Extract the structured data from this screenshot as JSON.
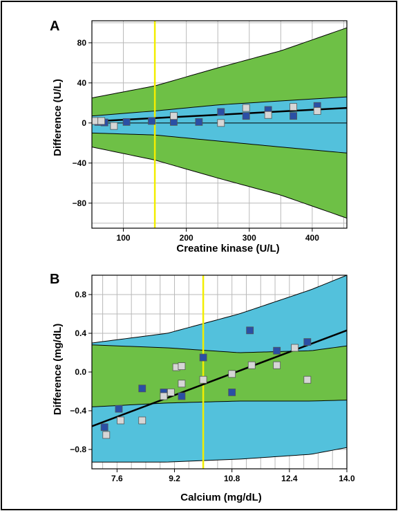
{
  "chart_data": [
    {
      "panel": "A",
      "type": "scatter",
      "xlabel": "Creatine kinase (U/L)",
      "ylabel": "Difference (U/L)",
      "xlim": [
        50,
        455
      ],
      "ylim": [
        -105,
        102
      ],
      "xticks": [
        100,
        200,
        300,
        400
      ],
      "yticks": [
        80,
        40,
        0,
        -40,
        -80
      ],
      "ytick_labels": [
        "80",
        "40",
        "0",
        "−40",
        "−80"
      ],
      "grid": true,
      "reference_x": 150,
      "fit_line": {
        "x": [
          50,
          455
        ],
        "y": [
          1.5,
          15
        ]
      },
      "zero_line_y": 0,
      "outer_band": {
        "color": "#6ec046",
        "x": [
          50,
          150,
          250,
          350,
          455
        ],
        "upper": [
          25,
          37,
          55,
          72,
          95
        ],
        "lower": [
          -26,
          -27,
          -28,
          -29,
          -30
        ],
        "upper_inner": [
          -30,
          -29,
          -28,
          -27,
          -27
        ],
        "lower_outer": [
          -24,
          -37,
          -55,
          -72,
          -95
        ],
        "note": "green regions between inner band edges and outer curves"
      },
      "inner_band": {
        "color": "#53c1dc",
        "x": [
          50,
          150,
          250,
          350,
          455
        ],
        "upper": [
          7,
          12,
          18,
          22,
          26
        ],
        "lower": [
          -10,
          -12,
          -18,
          -24,
          -30
        ]
      },
      "series": [
        {
          "color": "#2a4fa5",
          "points": [
            [
              60,
              1
            ],
            [
              70,
              0.5
            ],
            [
              105,
              1
            ],
            [
              145,
              2
            ],
            [
              180,
              1
            ],
            [
              220,
              1
            ],
            [
              255,
              11
            ],
            [
              295,
              7
            ],
            [
              330,
              13
            ],
            [
              370,
              7
            ],
            [
              408,
              17
            ]
          ]
        },
        {
          "color": "#d6d6d6",
          "points": [
            [
              55,
              2
            ],
            [
              65,
              2
            ],
            [
              85,
              -3
            ],
            [
              180,
              7
            ],
            [
              255,
              0
            ],
            [
              295,
              15
            ],
            [
              330,
              8
            ],
            [
              370,
              16
            ],
            [
              408,
              12
            ]
          ]
        }
      ]
    },
    {
      "panel": "B",
      "type": "scatter",
      "xlabel": "Calcium (mg/dL)",
      "ylabel": "Difference (mg/dL)",
      "xlim": [
        6.9,
        14.0
      ],
      "ylim": [
        -1.0,
        1.0
      ],
      "xticks": [
        7.6,
        9.2,
        10.8,
        12.4,
        14.0
      ],
      "xtick_labels": [
        "7.6",
        "9.2",
        "10.8",
        "12.4",
        "14.0"
      ],
      "yticks": [
        0.8,
        0.4,
        0.0,
        -0.4,
        -0.8
      ],
      "ytick_labels": [
        "0.8",
        "0.4",
        "0.0",
        "−0.4",
        "−0.8"
      ],
      "grid": true,
      "reference_x": 10.0,
      "fit_line": {
        "x": [
          6.9,
          14.0
        ],
        "y": [
          -0.56,
          0.43
        ]
      },
      "outer_band": {
        "color": "#53c1dc",
        "x": [
          6.9,
          9.0,
          11.0,
          13.0,
          14.0
        ],
        "upper": [
          0.3,
          0.4,
          0.6,
          0.85,
          1.0
        ],
        "lower": [
          -0.93,
          -0.93,
          -0.9,
          -0.85,
          -0.78
        ]
      },
      "inner_band": {
        "color": "#6ec046",
        "x": [
          6.9,
          9.0,
          11.0,
          13.0,
          14.0
        ],
        "upper": [
          0.28,
          0.25,
          0.2,
          0.22,
          0.27
        ],
        "lower": [
          -0.36,
          -0.32,
          -0.3,
          -0.3,
          -0.29
        ]
      },
      "series": [
        {
          "color": "#2a4fa5",
          "points": [
            [
              7.25,
              -0.57
            ],
            [
              7.65,
              -0.38
            ],
            [
              8.3,
              -0.17
            ],
            [
              8.9,
              -0.21
            ],
            [
              9.4,
              -0.25
            ],
            [
              10.0,
              0.15
            ],
            [
              10.8,
              -0.21
            ],
            [
              11.3,
              0.43
            ],
            [
              12.05,
              0.22
            ],
            [
              12.9,
              0.31
            ]
          ]
        },
        {
          "color": "#d6d6d6",
          "points": [
            [
              7.3,
              -0.65
            ],
            [
              7.7,
              -0.5
            ],
            [
              8.3,
              -0.5
            ],
            [
              8.9,
              -0.25
            ],
            [
              9.1,
              -0.21
            ],
            [
              9.25,
              0.05
            ],
            [
              9.4,
              0.06
            ],
            [
              9.4,
              -0.12
            ],
            [
              10.0,
              -0.08
            ],
            [
              10.8,
              -0.02
            ],
            [
              11.35,
              0.07
            ],
            [
              12.05,
              0.07
            ],
            [
              12.55,
              0.25
            ],
            [
              12.9,
              -0.08
            ]
          ]
        }
      ]
    }
  ],
  "labels": {
    "panel_a": "A",
    "panel_b": "B",
    "a_xlabel": "Creatine kinase (U/L)",
    "a_ylabel": "Difference (U/L)",
    "b_xlabel": "Calcium (mg/dL)",
    "b_ylabel": "Difference (mg/dL)"
  }
}
